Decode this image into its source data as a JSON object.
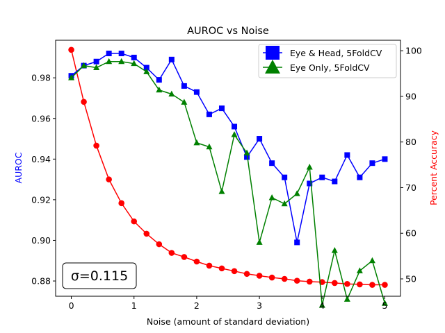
{
  "chart_data": {
    "type": "line",
    "title": "AUROC vs Noise",
    "xlabel": "Noise (amount of standard deviation)",
    "ylabel_left": "AUROC",
    "ylabel_right": "Percent Accuracy",
    "xlim": [
      -0.25,
      5.25
    ],
    "ylim_left": [
      0.8725,
      0.9985
    ],
    "ylim_right": [
      46.2,
      102.3
    ],
    "x_ticks": [
      "0",
      "1",
      "2",
      "3",
      "4",
      "5"
    ],
    "y_left_ticks": [
      "0.88",
      "0.90",
      "0.92",
      "0.94",
      "0.96",
      "0.98"
    ],
    "y_right_ticks": [
      "50",
      "60",
      "70",
      "80",
      "90",
      "100"
    ],
    "grid": false,
    "legend_position": "top-right",
    "annotation": "σ=0.115",
    "x": [
      0,
      0.2,
      0.4,
      0.6,
      0.8,
      1.0,
      1.2,
      1.4,
      1.6,
      1.8,
      2.0,
      2.2,
      2.4,
      2.6,
      2.8,
      3.0,
      3.2,
      3.4,
      3.6,
      3.8,
      4.0,
      4.2,
      4.4,
      4.6,
      4.8,
      5.0
    ],
    "series": [
      {
        "name": "Eye & Head, 5FoldCV",
        "axis": "left",
        "color": "#0000ff",
        "marker": "square",
        "values": [
          0.981,
          0.986,
          0.988,
          0.992,
          0.992,
          0.99,
          0.985,
          0.979,
          0.989,
          0.976,
          0.973,
          0.962,
          0.965,
          0.956,
          0.941,
          0.95,
          0.938,
          0.931,
          0.899,
          0.928,
          0.931,
          0.929,
          0.942,
          0.931,
          0.938,
          0.94
        ]
      },
      {
        "name": "Eye Only, 5FoldCV",
        "axis": "left",
        "color": "#008000",
        "marker": "triangle",
        "values": [
          0.98,
          0.986,
          0.985,
          0.988,
          0.988,
          0.987,
          0.983,
          0.974,
          0.972,
          0.968,
          0.948,
          0.946,
          0.924,
          0.952,
          0.943,
          0.899,
          0.921,
          0.918,
          0.923,
          0.936,
          0.868,
          0.895,
          0.871,
          0.885,
          0.89,
          0.869
        ]
      },
      {
        "axis": "right",
        "color": "#ff0000",
        "marker": "circle",
        "values": [
          100.2,
          88.8,
          79.2,
          71.8,
          66.6,
          62.6,
          59.9,
          57.6,
          55.7,
          54.8,
          53.8,
          52.9,
          52.3,
          51.7,
          51.1,
          50.7,
          50.3,
          50.0,
          49.6,
          49.4,
          49.3,
          49.1,
          48.9,
          48.8,
          48.7,
          48.7
        ]
      }
    ]
  }
}
